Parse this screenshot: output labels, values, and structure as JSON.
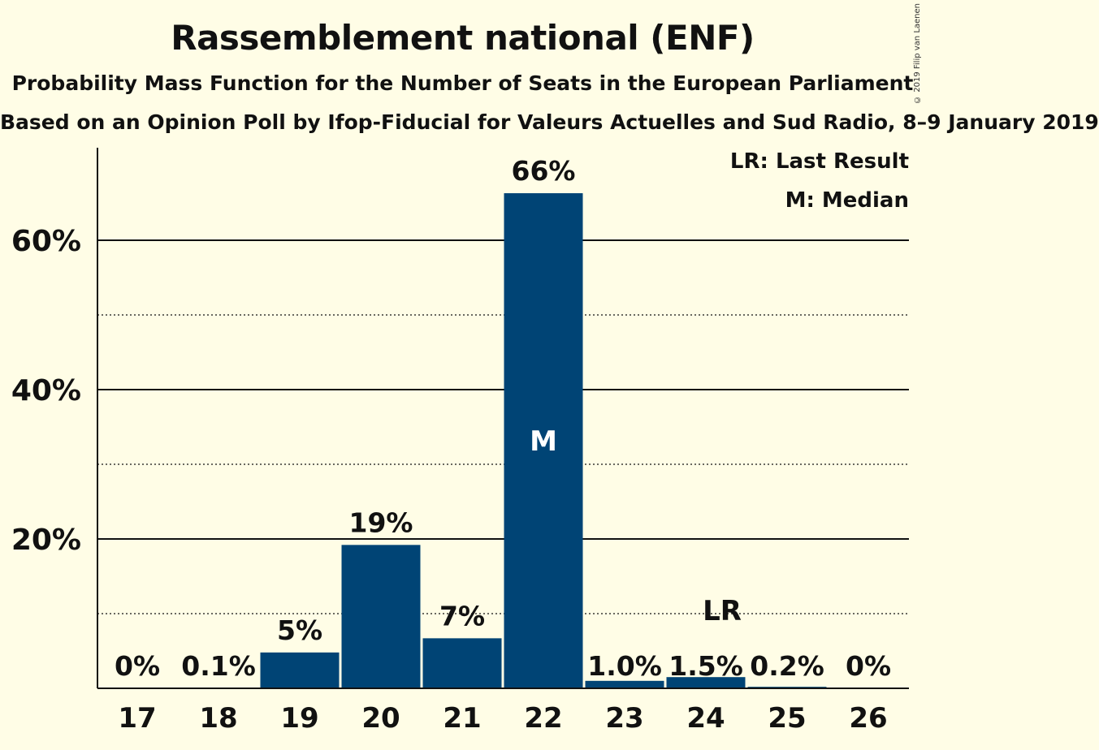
{
  "header": {
    "title": "Rassemblement national (ENF)",
    "subtitle": "Probability Mass Function for the Number of Seats in the European Parliament",
    "subtitle2": "Based on an Opinion Poll by Ifop-Fiducial for Valeurs Actuelles and Sud Radio, 8–9 January 2019",
    "copyright": "© 2019 Filip van Laenen"
  },
  "legend": {
    "last_result": "LR: Last Result",
    "median": "M: Median"
  },
  "chart_data": {
    "type": "bar",
    "categories": [
      "17",
      "18",
      "19",
      "20",
      "21",
      "22",
      "23",
      "24",
      "25",
      "26"
    ],
    "values": [
      0,
      0.1,
      4.8,
      19.2,
      6.7,
      66.3,
      1.0,
      1.5,
      0.2,
      0
    ],
    "labels": [
      "0%",
      "0.1%",
      "5%",
      "19%",
      "7%",
      "66%",
      "1.0%",
      "1.5%",
      "0.2%",
      "0%"
    ],
    "median_category": "22",
    "median_marker": "M",
    "last_result_category": "24",
    "last_result_marker": "LR",
    "yticks": [
      20,
      40,
      60
    ],
    "ytick_labels": [
      "20%",
      "40%",
      "60%"
    ],
    "minor_gridlines": [
      10,
      30,
      50
    ],
    "ylim": [
      0,
      72
    ],
    "bar_color": "#004475",
    "background": "#fffde6",
    "grid": true,
    "legend_position": "top-right"
  }
}
